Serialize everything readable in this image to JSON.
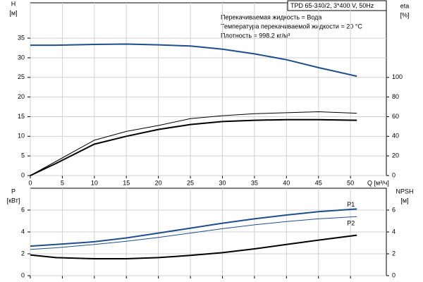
{
  "chart_data": [
    {
      "type": "line",
      "subtitle": "TPD 65-340/2, 3*400 V, 50Hz",
      "annotations": [
        "Перекачиваемая жидкость = Вода",
        "Температура перекачиваемой жидкости = 20 °C",
        "Плотность = 998.2 кг/м³"
      ],
      "y_label": "H",
      "y_unit": "[м]",
      "y2_label": "eta",
      "y2_unit": "[%]",
      "x_label": "Q [м³/ч]",
      "x": [
        0,
        4,
        10,
        15,
        20,
        25,
        30,
        35,
        40,
        45,
        51
      ],
      "xlim": [
        0,
        55.6
      ],
      "xticks": [
        0,
        5,
        10,
        15,
        20,
        25,
        30,
        35,
        40,
        45,
        50
      ],
      "ylim": [
        0,
        44
      ],
      "yticks": [
        0,
        5,
        10,
        15,
        20,
        25,
        30,
        35
      ],
      "y2lim": [
        0,
        176
      ],
      "y2ticks": [
        0,
        20,
        40,
        60,
        80,
        100
      ],
      "grid": true,
      "xtick_labels": true,
      "series": [
        {
          "color": "#1f4e8c",
          "width": 2,
          "values": [
            33.2,
            33.2,
            33.4,
            33.5,
            33.3,
            33.0,
            32.2,
            31.0,
            29.5,
            27.5,
            25.3
          ]
        },
        {
          "color": "#000000",
          "width": 2,
          "axis": "y2",
          "values": [
            0,
            12.3,
            32,
            40,
            47,
            52,
            55,
            56.3,
            57,
            57,
            56.3
          ]
        },
        {
          "color": "#000000",
          "width": 1,
          "axis": "y2",
          "values": [
            0,
            14.4,
            36,
            45,
            51,
            58,
            61,
            63,
            64,
            65,
            63.5
          ]
        }
      ]
    },
    {
      "type": "line",
      "y_label": "P",
      "y_unit": "[кВт]",
      "y2_label": "NPSH",
      "y2_unit": "[м]",
      "x": [
        0,
        4,
        10,
        15,
        20,
        25,
        30,
        35,
        40,
        45,
        51
      ],
      "xlim": [
        0,
        55.6
      ],
      "xticks": [
        0,
        5,
        10,
        15,
        20,
        25,
        30,
        35,
        40,
        45,
        50
      ],
      "ylim": [
        0,
        8
      ],
      "yticks": [
        0,
        2,
        4,
        6
      ],
      "y2lim": [
        0,
        8
      ],
      "y2ticks": [
        0,
        2,
        4,
        6
      ],
      "grid": true,
      "xtick_labels": false,
      "series": [
        {
          "name": "P1",
          "color": "#1f4e8c",
          "width": 2,
          "values": [
            2.7,
            2.85,
            3.1,
            3.45,
            3.9,
            4.35,
            4.8,
            5.2,
            5.55,
            5.85,
            6.1
          ]
        },
        {
          "name": "P2",
          "color": "#1f4e8c",
          "width": 1,
          "values": [
            2.4,
            2.55,
            2.85,
            3.15,
            3.5,
            3.9,
            4.3,
            4.65,
            4.95,
            5.2,
            5.4
          ]
        },
        {
          "color": "#000000",
          "width": 2,
          "axis": "y2",
          "values": [
            1.9,
            1.65,
            1.55,
            1.55,
            1.65,
            1.85,
            2.1,
            2.45,
            2.85,
            3.25,
            3.7
          ]
        }
      ]
    }
  ]
}
